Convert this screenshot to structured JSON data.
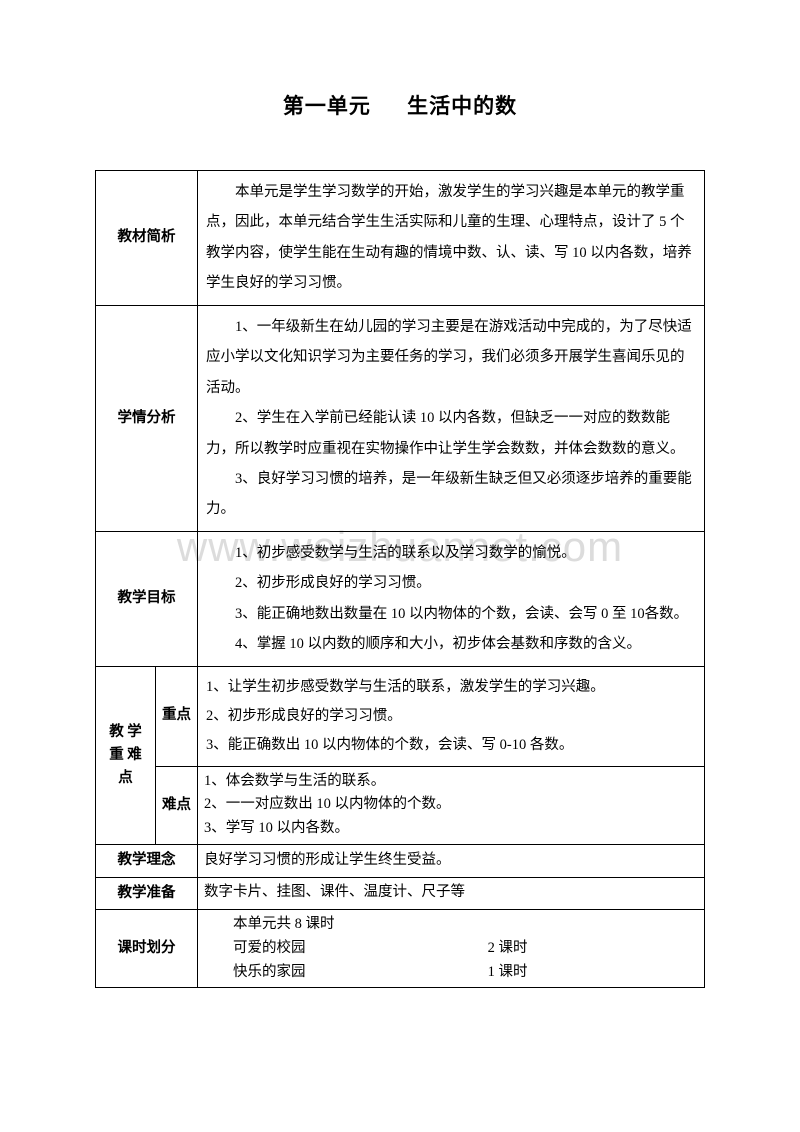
{
  "title": {
    "unit": "第一单元",
    "name": "生活中的数"
  },
  "watermark": "www.weizhuannet.com",
  "rows": {
    "material": {
      "label": "教材简析",
      "text": "本单元是学生学习数学的开始，激发学生的学习兴趣是本单元的教学重点，因此，本单元结合学生生活实际和儿童的生理、心理特点，设计了 5 个教学内容，使学生能在生动有趣的情境中数、认、读、写 10 以内各数，培养学生良好的学习习惯。"
    },
    "situation": {
      "label": "学情分析",
      "p1": "1、一年级新生在幼儿园的学习主要是在游戏活动中完成的，为了尽快适应小学以文化知识学习为主要任务的学习，我们必须多开展学生喜闻乐见的活动。",
      "p2": "2、学生在入学前已经能认读 10 以内各数，但缺乏一一对应的数数能力，所以教学时应重视在实物操作中让学生学会数数，并体会数数的意义。",
      "p3": "3、良好学习习惯的培养，是一年级新生缺乏但又必须逐步培养的重要能力。"
    },
    "goals": {
      "label": "教学目标",
      "i1": "1、初步感受数学与生活的联系以及学习数学的愉悦。",
      "i2": "2、初步形成良好的学习习惯。",
      "i3": "3、能正确地数出数量在 10 以内物体的个数，会读、会写 0 至 10各数。",
      "i4": "4、掌握 10 以内数的顺序和大小，初步体会基数和序数的含义。"
    },
    "focus": {
      "label": "教 学重 难点",
      "zhong_label": "重点",
      "z1": "1、让学生初步感受数学与生活的联系，激发学生的学习兴趣。",
      "z2": "2、初步形成良好的学习习惯。",
      "z3": "3、能正确数出 10 以内物体的个数，会读、写 0-10 各数。",
      "nan_label": "难点",
      "n1": "1、体会数学与生活的联系。",
      "n2": "2、一一对应数出 10 以内物体的个数。",
      "n3": "3、学写 10 以内各数。"
    },
    "concept": {
      "label": "教学理念",
      "text": "良好学习习惯的形成让学生终生受益。"
    },
    "prep": {
      "label": "教学准备",
      "text": "数字卡片、挂图、课件、温度计、尺子等"
    },
    "schedule": {
      "label": "课时划分",
      "total": "本单元共 8 课时",
      "r1_name": "可爱的校园",
      "r1_time": "2 课时",
      "r2_name": "快乐的家园",
      "r2_time": "1 课时"
    }
  }
}
